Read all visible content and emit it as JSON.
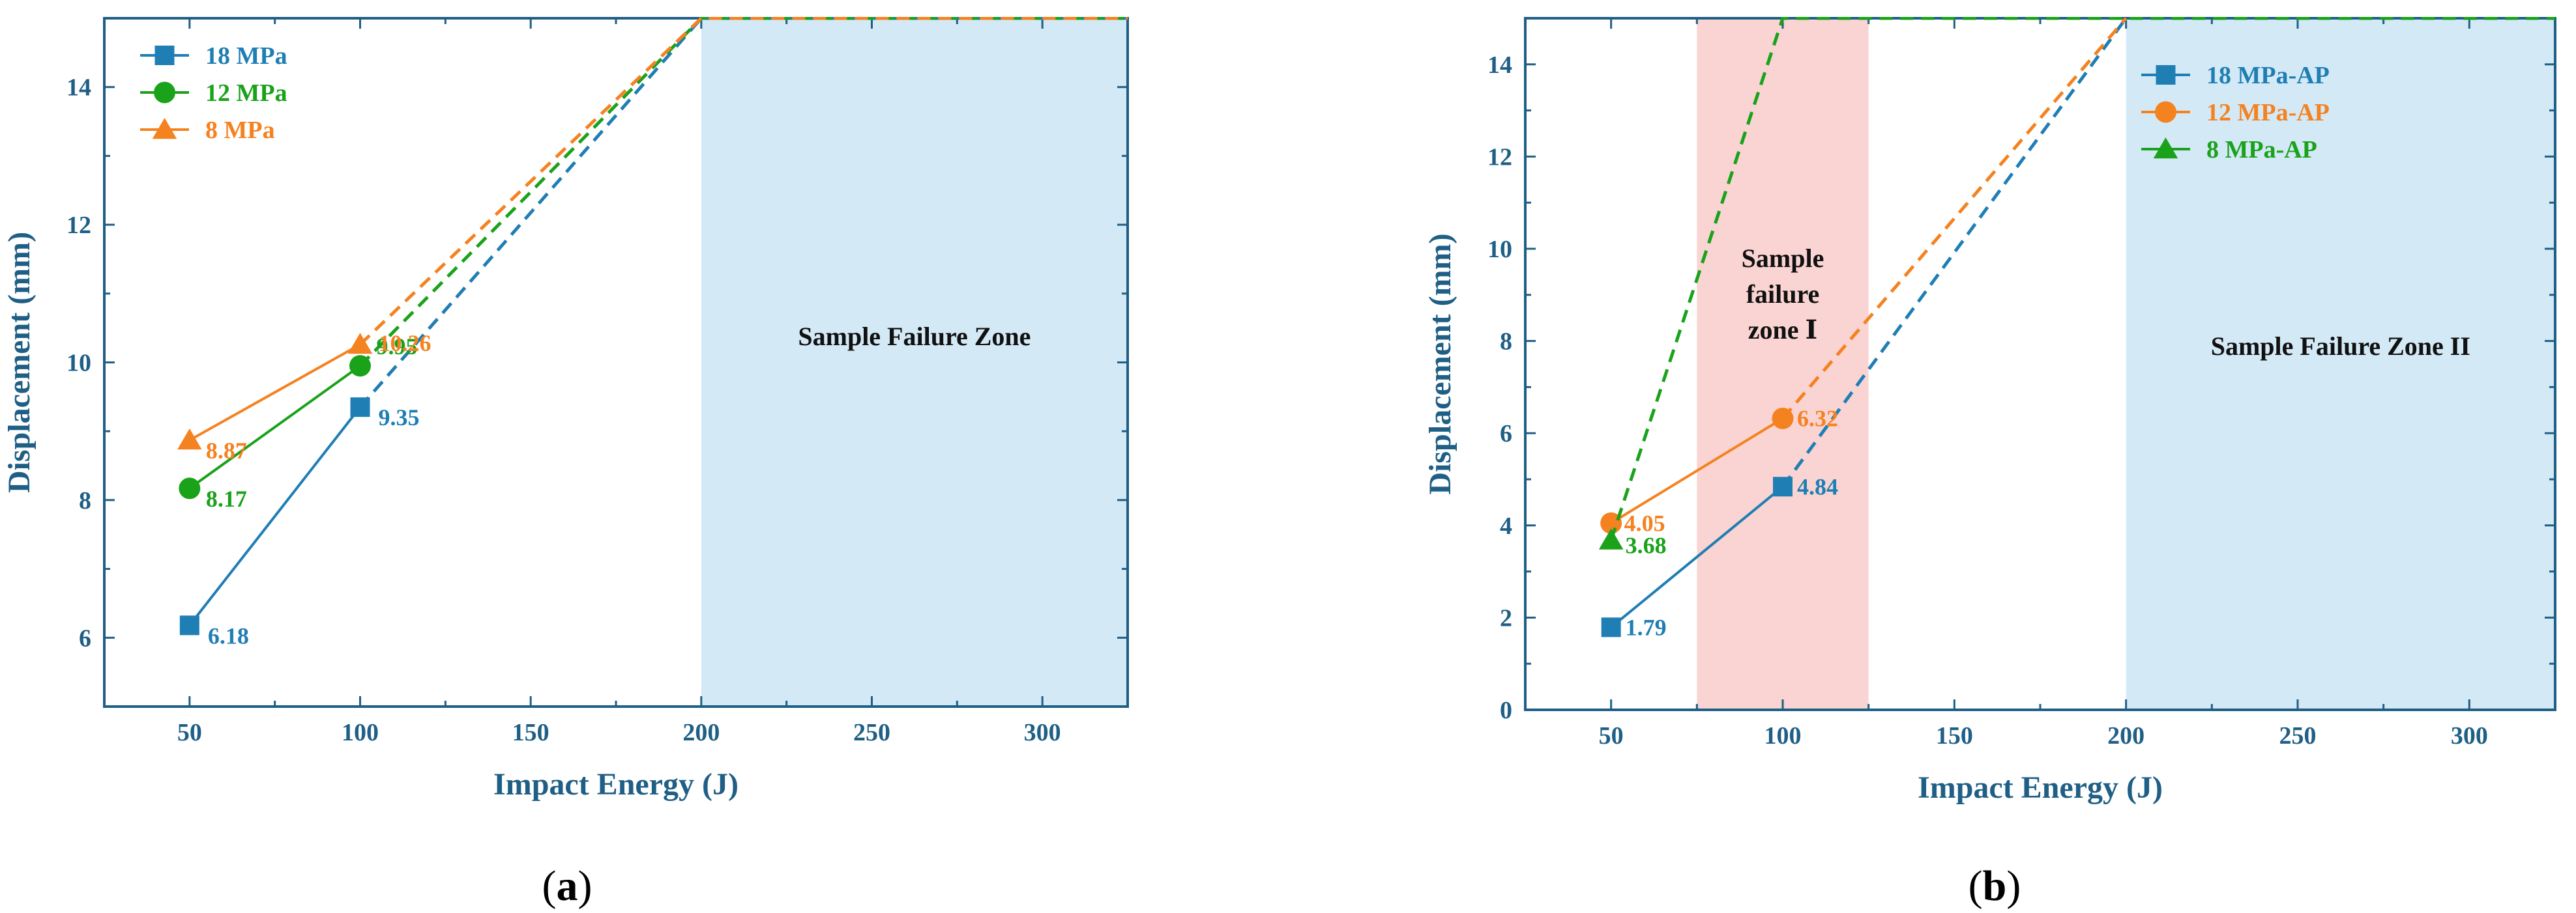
{
  "panels": [
    {
      "id": "a",
      "open": "(",
      "letter": "a",
      "close": ")"
    },
    {
      "id": "b",
      "open": "(",
      "letter": "b",
      "close": ")"
    }
  ],
  "chart_data": [
    {
      "type": "line",
      "panel": "a",
      "title": "",
      "xlabel": "Impact Energy (J)",
      "ylabel": "Displacement (mm)",
      "xlim": [
        25,
        325
      ],
      "ylim": [
        5,
        15
      ],
      "xticks": [
        "50",
        "100",
        "150",
        "200",
        "250",
        "300"
      ],
      "yticks": [
        "6",
        "8",
        "10",
        "12",
        "14"
      ],
      "grid": false,
      "legend_position": "top-left",
      "zones": [
        {
          "label_lines": [
            "Sample Failure Zone"
          ],
          "x_range": [
            200,
            325
          ],
          "color": "#d3e9f6"
        }
      ],
      "series": [
        {
          "name": "18 MPa",
          "color": "#1f7eb4",
          "marker": "square",
          "x": [
            50,
            100
          ],
          "y": [
            6.18,
            9.35
          ],
          "labels": [
            "6.18",
            "9.35"
          ],
          "extrapolation": {
            "x": [
              100,
              200,
              325
            ],
            "y": [
              9.35,
              15,
              15
            ]
          }
        },
        {
          "name": "12 MPa",
          "color": "#1aa21a",
          "marker": "circle",
          "x": [
            50,
            100
          ],
          "y": [
            8.17,
            9.95
          ],
          "labels": [
            "8.17",
            "9.95"
          ],
          "extrapolation": {
            "x": [
              100,
              200,
              325
            ],
            "y": [
              9.95,
              15,
              15
            ]
          }
        },
        {
          "name": "8 MPa",
          "color": "#f58220",
          "marker": "triangle",
          "x": [
            50,
            100
          ],
          "y": [
            8.87,
            10.26
          ],
          "labels": [
            "8.87",
            "10.26"
          ],
          "extrapolation": {
            "x": [
              100,
              200,
              325
            ],
            "y": [
              10.26,
              15,
              15
            ]
          }
        }
      ]
    },
    {
      "type": "line",
      "panel": "b",
      "title": "",
      "xlabel": "Impact Energy (J)",
      "ylabel": "Displacement (mm)",
      "xlim": [
        25,
        325
      ],
      "ylim": [
        0,
        15
      ],
      "xticks": [
        "50",
        "100",
        "150",
        "200",
        "250",
        "300"
      ],
      "yticks": [
        "0",
        "2",
        "4",
        "6",
        "8",
        "10",
        "12",
        "14"
      ],
      "grid": false,
      "legend_position": "top-right",
      "zones": [
        {
          "label_lines": [
            "Sample",
            "failure",
            "zone Ⅰ"
          ],
          "x_range": [
            75,
            125
          ],
          "color": "#f9d4d2"
        },
        {
          "label_lines": [
            "Sample Failure Zone II"
          ],
          "x_range": [
            200,
            325
          ],
          "color": "#d3e9f6"
        }
      ],
      "series": [
        {
          "name": "18 MPa-AP",
          "color": "#1f7eb4",
          "marker": "square",
          "x": [
            50,
            100
          ],
          "y": [
            1.79,
            4.84
          ],
          "labels": [
            "1.79",
            "4.84"
          ],
          "extrapolation": {
            "x": [
              100,
              200
            ],
            "y": [
              4.84,
              15
            ]
          }
        },
        {
          "name": "12 MPa-AP",
          "color": "#f58220",
          "marker": "circle",
          "x": [
            50,
            100
          ],
          "y": [
            4.05,
            6.32
          ],
          "labels": [
            "4.05",
            "6.32"
          ],
          "extrapolation": {
            "x": [
              100,
              200
            ],
            "y": [
              6.32,
              15
            ]
          }
        },
        {
          "name": "8 MPa-AP",
          "color": "#1aa21a",
          "marker": "triangle",
          "x": [
            50
          ],
          "y": [
            3.68
          ],
          "labels": [
            "3.68"
          ],
          "extrapolation": {
            "x": [
              50,
              100,
              325
            ],
            "y": [
              3.68,
              15,
              15
            ]
          }
        }
      ]
    }
  ]
}
